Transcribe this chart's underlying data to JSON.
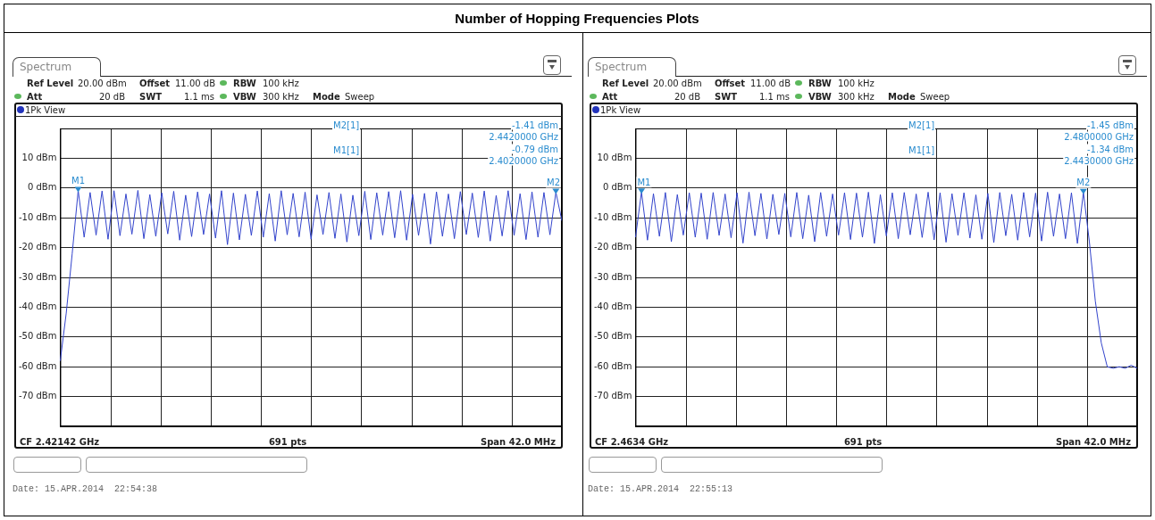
{
  "chart_data": [
    {
      "type": "line",
      "title": "Number of Hopping Frequencies Plots",
      "color": "#3344cc",
      "grid": true,
      "tick_labels": "y",
      "annotations": [
        "Spectrum",
        "Ref Level",
        "20.00 dBm",
        "Offset",
        "11.00 dB",
        "RBW",
        "100 kHz",
        "Att",
        "20 dB",
        "SWT",
        "1.1 ms",
        "VBW",
        "300 kHz",
        "Mode",
        "Sweep",
        "1Pk View",
        "M2[1]",
        "-1.41 dBm",
        "2.4420000 GHz",
        "M1[1]",
        "-0.79 dBm",
        "2.4020000 GHz",
        "CF 2.42142 GHz",
        "691 pts",
        "Span 42.0 MHz",
        "Date: 15.APR.2014  22:54:38",
        {
          "text": "M1",
          "y": -0.79
        },
        {
          "text": "M2",
          "y": -1.41
        }
      ],
      "ylim": [
        -80,
        20
      ],
      "yticks": [
        {
          "value": 10,
          "label": "10 dBm"
        },
        {
          "value": 0,
          "label": "0 dBm"
        },
        {
          "value": -10,
          "label": "-10 dBm"
        },
        {
          "value": -20,
          "label": "-20 dBm"
        },
        {
          "value": -30,
          "label": "-30 dBm"
        },
        {
          "value": -40,
          "label": "-40 dBm"
        },
        {
          "value": -50,
          "label": "-50 dBm"
        },
        {
          "value": -60,
          "label": "-60 dBm"
        },
        {
          "value": -70,
          "label": "-70 dBm"
        }
      ],
      "categories": [
        null,
        null,
        null,
        null,
        null,
        null,
        null,
        null,
        null,
        null,
        null,
        null,
        null,
        null,
        null,
        null,
        null,
        null,
        null,
        null,
        null,
        null,
        null,
        null,
        null,
        null,
        null,
        null,
        null,
        null,
        null,
        null,
        null,
        null,
        null,
        null,
        null,
        null,
        null,
        null,
        null,
        null,
        null,
        null,
        null,
        null,
        null,
        null,
        null,
        null,
        null,
        null,
        null,
        null,
        null,
        null,
        null,
        null,
        null,
        null,
        null,
        null,
        null,
        null,
        null,
        null,
        null,
        null,
        null,
        null,
        null,
        null,
        null,
        null,
        null,
        null,
        null,
        null,
        null,
        null,
        null,
        null,
        null,
        null,
        null
      ],
      "values": [
        -58,
        -42,
        -22,
        -0.79,
        -16.5,
        -1.5,
        -15.8,
        -1.0,
        -17.2,
        -0.9,
        -16.0,
        -2.0,
        -15.5,
        -0.8,
        -17.0,
        -2.2,
        -16.2,
        -1.6,
        -15.4,
        -1.1,
        -17.5,
        -2.4,
        -16.3,
        -1.3,
        -15.6,
        -2.0,
        -16.8,
        -0.9,
        -19.0,
        -1.7,
        -17.4,
        -2.1,
        -15.9,
        -1.0,
        -16.5,
        -1.9,
        -17.8,
        -0.9,
        -15.7,
        -1.8,
        -16.4,
        -1.4,
        -17.2,
        -2.3,
        -15.6,
        -1.5,
        -16.9,
        -2.0,
        -18.1,
        -2.4,
        -16.0,
        -1.1,
        -17.3,
        -1.6,
        -15.8,
        -1.2,
        -16.7,
        -0.9,
        -17.5,
        -2.1,
        -15.9,
        -1.8,
        -18.8,
        -1.3,
        -16.2,
        -2.0,
        -17.0,
        -1.2,
        -15.6,
        -1.7,
        -16.6,
        -1.0,
        -17.8,
        -2.5,
        -16.1,
        -0.9,
        -15.9,
        -1.9,
        -17.3,
        -1.3,
        -16.5,
        -1.5,
        -15.7,
        -1.41,
        -11
      ]
    },
    {
      "type": "line",
      "color": "#3344cc",
      "grid": true,
      "tick_labels": "y",
      "annotations": [
        "Spectrum",
        "Ref Level",
        "20.00 dBm",
        "Offset",
        "11.00 dB",
        "RBW",
        "100 kHz",
        "Att",
        "20 dB",
        "SWT",
        "1.1 ms",
        "VBW",
        "300 kHz",
        "Mode",
        "Sweep",
        "1Pk View",
        "M2[1]",
        "-1.45 dBm",
        "2.4800000 GHz",
        "M1[1]",
        "-1.34 dBm",
        "2.4430000 GHz",
        "CF 2.4634 GHz",
        "691 pts",
        "Span 42.0 MHz",
        "Date: 15.APR.2014  22:55:13",
        {
          "text": "M1",
          "y": -1.34
        },
        {
          "text": "M2",
          "y": -1.45
        }
      ],
      "ylim": [
        -80,
        20
      ],
      "yticks": [
        {
          "value": 10,
          "label": "10 dBm"
        },
        {
          "value": 0,
          "label": "0 dBm"
        },
        {
          "value": -10,
          "label": "-10 dBm"
        },
        {
          "value": -20,
          "label": "-20 dBm"
        },
        {
          "value": -30,
          "label": "-30 dBm"
        },
        {
          "value": -40,
          "label": "-40 dBm"
        },
        {
          "value": -50,
          "label": "-50 dBm"
        },
        {
          "value": -60,
          "label": "-60 dBm"
        },
        {
          "value": -70,
          "label": "-70 dBm"
        }
      ],
      "categories": [
        null,
        null,
        null,
        null,
        null,
        null,
        null,
        null,
        null,
        null,
        null,
        null,
        null,
        null,
        null,
        null,
        null,
        null,
        null,
        null,
        null,
        null,
        null,
        null,
        null,
        null,
        null,
        null,
        null,
        null,
        null,
        null,
        null,
        null,
        null,
        null,
        null,
        null,
        null,
        null,
        null,
        null,
        null,
        null,
        null,
        null,
        null,
        null,
        null,
        null,
        null,
        null,
        null,
        null,
        null,
        null,
        null,
        null,
        null,
        null,
        null,
        null,
        null,
        null,
        null,
        null,
        null,
        null,
        null,
        null,
        null,
        null,
        null,
        null,
        null,
        null,
        null,
        null,
        null,
        null,
        null,
        null,
        null,
        null,
        null
      ],
      "values": [
        -16.5,
        -1.34,
        -17.5,
        -1.9,
        -16.2,
        -1.5,
        -18.0,
        -2.2,
        -15.8,
        -1.6,
        -16.5,
        -1.7,
        -17.2,
        -1.5,
        -15.9,
        -2.0,
        -16.7,
        -1.6,
        -18.5,
        -1.4,
        -16.0,
        -1.8,
        -17.1,
        -2.1,
        -15.6,
        -1.8,
        -16.4,
        -1.5,
        -17.0,
        -2.4,
        -18.0,
        -1.5,
        -16.2,
        -2.0,
        -15.8,
        -1.6,
        -17.3,
        -1.7,
        -16.5,
        -1.4,
        -18.6,
        -2.2,
        -16.1,
        -1.6,
        -17.0,
        -1.5,
        -15.7,
        -2.0,
        -16.6,
        -1.4,
        -17.4,
        -1.6,
        -18.2,
        -1.9,
        -15.9,
        -1.6,
        -16.8,
        -2.3,
        -17.2,
        -1.8,
        -18.3,
        -1.5,
        -16.0,
        -2.1,
        -17.5,
        -1.5,
        -16.4,
        -1.7,
        -17.8,
        -1.4,
        -16.2,
        -2.0,
        -17.0,
        -1.6,
        -18.6,
        -1.45,
        -18,
        -38,
        -52,
        -60,
        -60.5,
        -60,
        -60.5,
        -59.5,
        -60.5
      ]
    }
  ]
}
